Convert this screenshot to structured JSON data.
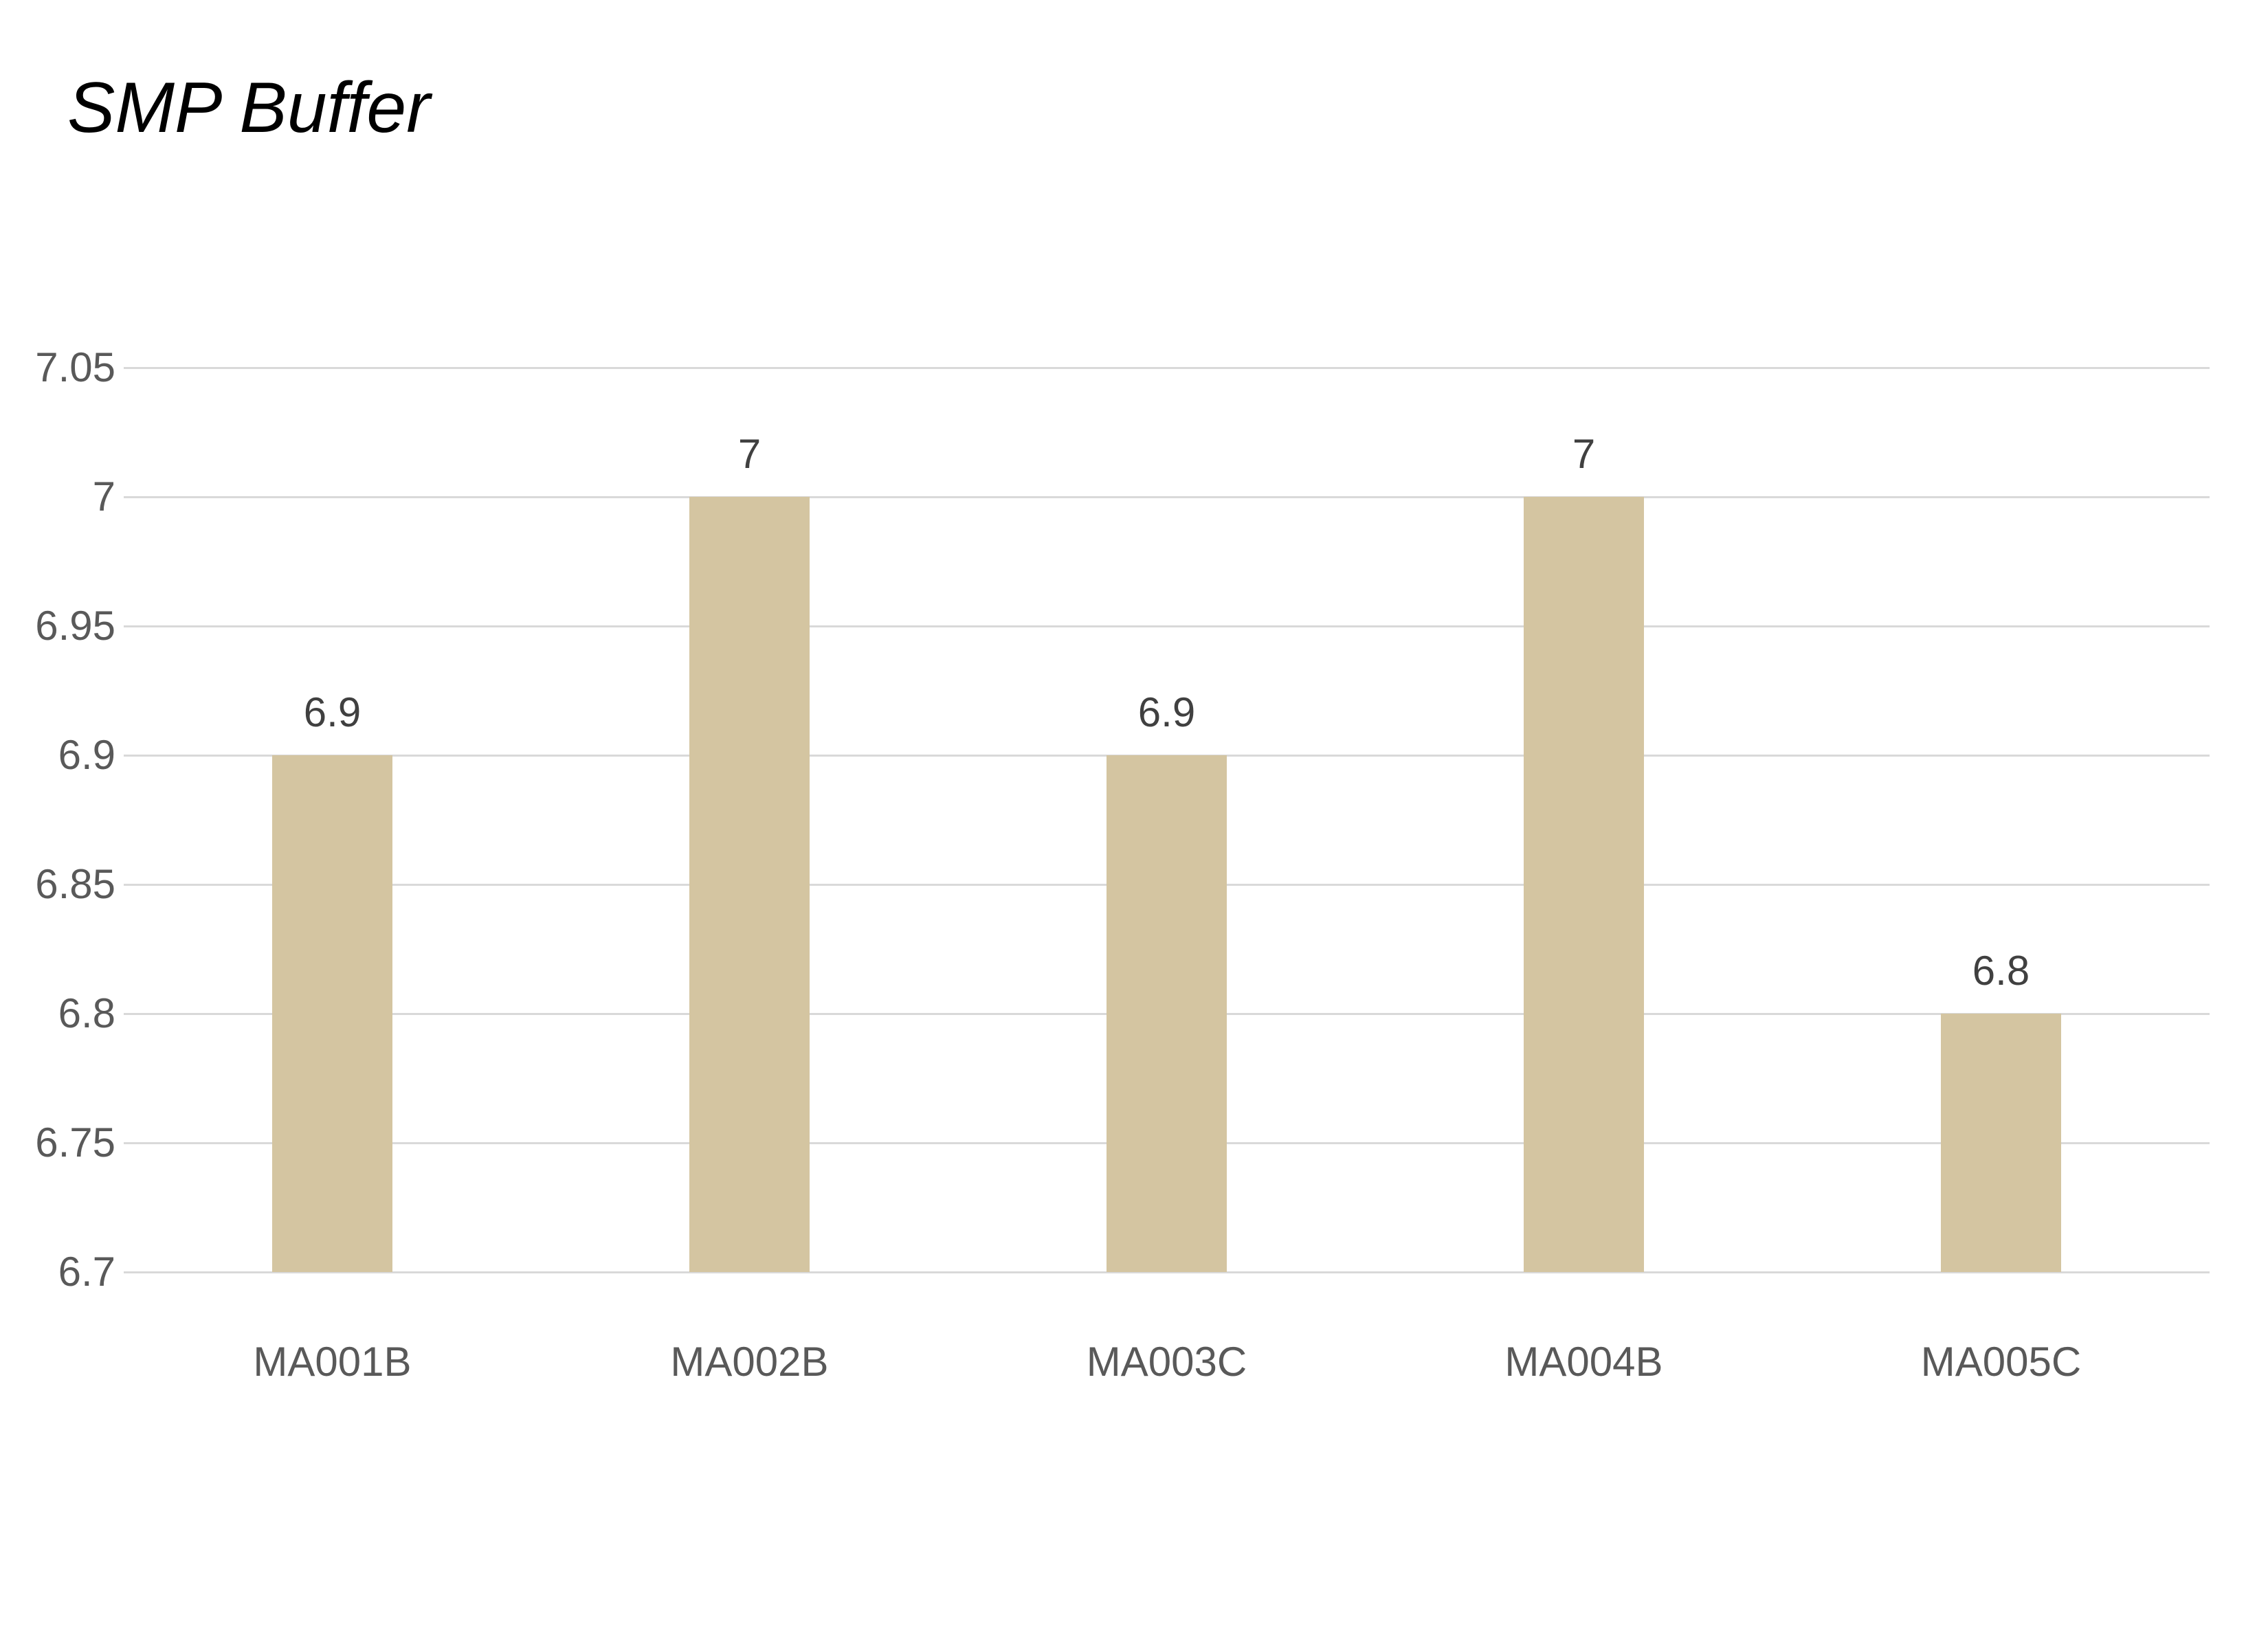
{
  "title": "SMP Buffer",
  "colors": {
    "bar_fill": "#d4c5a1",
    "gridline": "#d9d9d9",
    "axis_label": "#595959",
    "data_label": "#404040",
    "title_color": "#000000",
    "background": "#ffffff"
  },
  "chart_data": {
    "type": "bar",
    "title": "SMP Buffer",
    "categories": [
      "MA001B",
      "MA002B",
      "MA003C",
      "MA004B",
      "MA005C"
    ],
    "values": [
      6.9,
      7,
      6.9,
      7,
      6.8
    ],
    "data_labels": [
      "6.9",
      "7",
      "6.9",
      "7",
      "6.8"
    ],
    "ytick_labels": [
      "6.7",
      "6.75",
      "6.8",
      "6.85",
      "6.9",
      "6.95",
      "7",
      "7.05"
    ],
    "ylim": [
      6.7,
      7.05
    ],
    "ytick_step": 0.05,
    "xlabel": "",
    "ylabel": "",
    "grid": true,
    "legend": false,
    "legend_position": "none"
  }
}
